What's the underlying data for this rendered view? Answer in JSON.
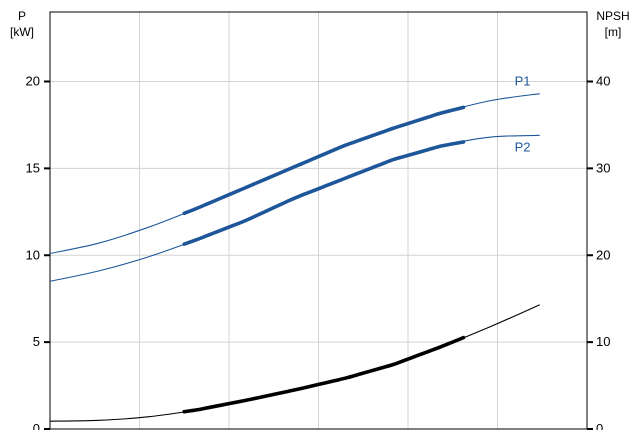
{
  "chart_data": {
    "type": "line",
    "left_axis": {
      "label": "P",
      "unit": "[kW]",
      "ylim": [
        0,
        24
      ],
      "ticks": [
        0,
        5,
        10,
        15,
        20
      ]
    },
    "right_axis": {
      "label": "NPSH",
      "unit": "[m]",
      "ylim": [
        0,
        48
      ],
      "ticks": [
        0,
        10,
        20,
        30,
        40
      ]
    },
    "x_axis": {
      "ticks": [],
      "gridlines": 5
    },
    "grid": true,
    "series": [
      {
        "name": "P1",
        "axis": "left",
        "color": "#1e5799",
        "x": [
          0,
          0.1,
          0.2,
          0.3,
          0.4,
          0.5,
          0.6,
          0.7,
          0.8,
          0.9,
          1.0
        ],
        "y": [
          10.1,
          10.7,
          11.6,
          12.7,
          13.9,
          15.1,
          16.3,
          17.3,
          18.2,
          18.9,
          19.3
        ],
        "highlight_range": [
          0.25,
          0.77
        ]
      },
      {
        "name": "P2",
        "axis": "left",
        "color": "#1e5799",
        "x": [
          0,
          0.1,
          0.2,
          0.3,
          0.4,
          0.5,
          0.6,
          0.7,
          0.8,
          0.9,
          1.0
        ],
        "y": [
          8.5,
          9.1,
          9.9,
          10.9,
          12.0,
          13.3,
          14.4,
          15.5,
          16.3,
          16.8,
          16.9
        ],
        "highlight_range": [
          0.25,
          0.77
        ]
      },
      {
        "name": "",
        "axis": "right",
        "color": "#000000",
        "x": [
          0,
          0.1,
          0.2,
          0.3,
          0.4,
          0.5,
          0.6,
          0.7,
          0.8,
          0.9,
          1.0
        ],
        "y": [
          0.9,
          1.0,
          1.4,
          2.2,
          3.3,
          4.5,
          5.8,
          7.4,
          9.5,
          11.8,
          14.3
        ],
        "highlight_range": [
          0.25,
          0.77
        ]
      }
    ]
  }
}
